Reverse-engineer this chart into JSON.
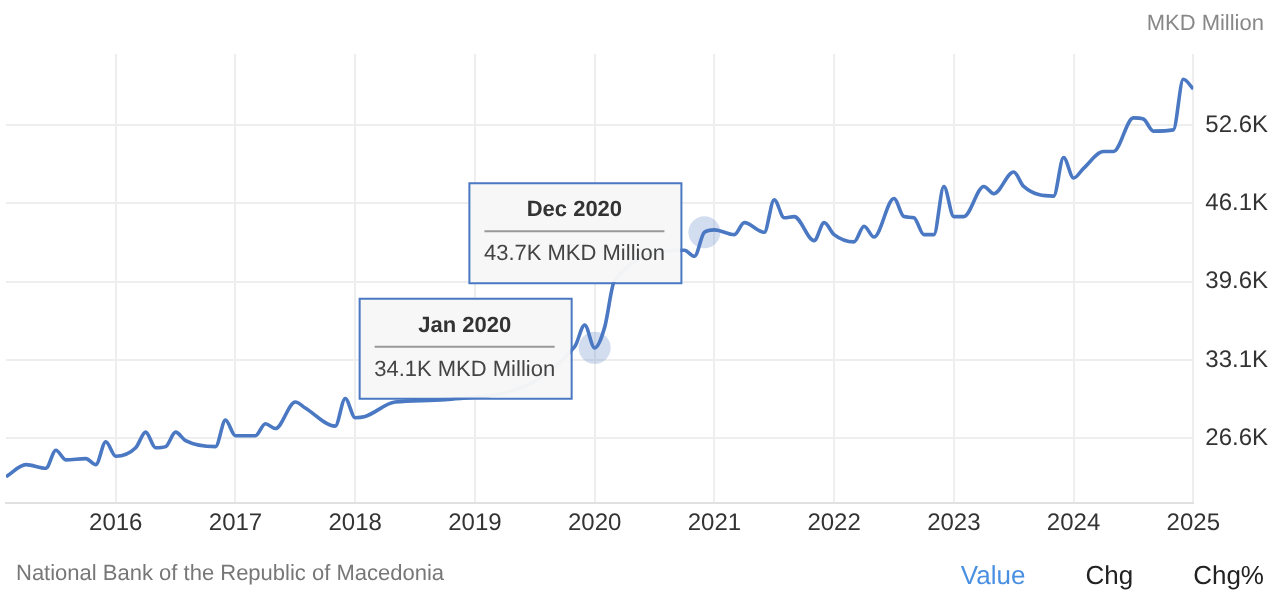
{
  "chart_data": {
    "type": "line",
    "ylabel": "MKD Million",
    "x": [
      "2015-02",
      "2015-04",
      "2015-06",
      "2015-07",
      "2015-08",
      "2015-10",
      "2015-11",
      "2015-12",
      "2016-01",
      "2016-03",
      "2016-04",
      "2016-05",
      "2016-06",
      "2016-07",
      "2016-08",
      "2016-11",
      "2016-12",
      "2017-01",
      "2017-03",
      "2017-04",
      "2017-05",
      "2017-07",
      "2017-08",
      "2017-11",
      "2017-12",
      "2018-01",
      "2018-02",
      "2018-05",
      "2018-10",
      "2019-11",
      "2019-12",
      "2020-01",
      "2020-02",
      "2020-03",
      "2020-10",
      "2020-11",
      "2020-12",
      "2021-01",
      "2021-03",
      "2021-04",
      "2021-06",
      "2021-07",
      "2021-08",
      "2021-09",
      "2021-11",
      "2021-12",
      "2022-01",
      "2022-03",
      "2022-04",
      "2022-05",
      "2022-07",
      "2022-08",
      "2022-09",
      "2022-10",
      "2022-11",
      "2022-12",
      "2023-01",
      "2023-02",
      "2023-04",
      "2023-05",
      "2023-07",
      "2023-08",
      "2023-11",
      "2023-12",
      "2024-01",
      "2024-02",
      "2024-04",
      "2024-05",
      "2024-07",
      "2024-08",
      "2024-09",
      "2024-11",
      "2024-12",
      "2025-01"
    ],
    "series": [
      {
        "color": "#4a78c2",
        "values": [
          23.4,
          24.4,
          24.1,
          25.6,
          24.8,
          24.9,
          24.4,
          26.3,
          25.1,
          25.8,
          27.1,
          25.8,
          25.9,
          27.1,
          26.4,
          25.9,
          28.1,
          26.8,
          26.8,
          27.8,
          27.4,
          29.6,
          29.1,
          27.6,
          29.9,
          28.3,
          28.4,
          29.6,
          29.8,
          34.2,
          36.0,
          34.1,
          35.8,
          39.7,
          42.2,
          41.7,
          43.7,
          43.9,
          43.5,
          44.5,
          43.7,
          46.4,
          44.9,
          45.0,
          43.0,
          44.5,
          43.5,
          42.9,
          44.2,
          43.3,
          46.5,
          45.0,
          44.9,
          43.5,
          43.5,
          47.5,
          45.0,
          45.0,
          47.5,
          46.9,
          48.7,
          47.5,
          46.7,
          49.9,
          48.2,
          49.0,
          50.4,
          50.4,
          53.2,
          53.1,
          52.1,
          52.2,
          56.4,
          55.6
        ]
      }
    ],
    "xlim": [
      "2015-02",
      "2025-01"
    ],
    "xticks": [
      "2016",
      "2017",
      "2018",
      "2019",
      "2020",
      "2021",
      "2022",
      "2023",
      "2024",
      "2025"
    ],
    "ylim": [
      21.2,
      58.5
    ],
    "yticks": [
      {
        "value": 26.6,
        "label": "26.6K"
      },
      {
        "value": 33.1,
        "label": "33.1K"
      },
      {
        "value": 39.6,
        "label": "39.6K"
      },
      {
        "value": 46.1,
        "label": "46.1K"
      },
      {
        "value": 52.6,
        "label": "52.6K"
      }
    ],
    "grid": true,
    "legend": false,
    "marker": "none",
    "line_style": "solid",
    "annotations": [
      {
        "text": "Jan 2020\n34.1K MKD Million",
        "x": "2020-01",
        "y": 34.1
      },
      {
        "text": "Dec 2020\n43.7K MKD Million",
        "x": "2020-12",
        "y": 43.7
      },
      "National Bank of the Republic of Macedonia",
      "Value",
      "Chg",
      "Chg%"
    ]
  }
}
